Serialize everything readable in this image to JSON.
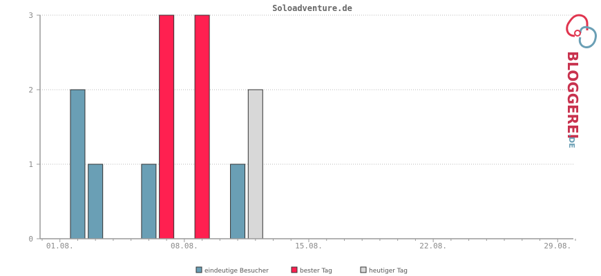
{
  "chart_data": {
    "type": "bar",
    "title": "Soloadventure.de",
    "xlabel": "",
    "ylabel": "",
    "ylim": [
      0,
      3
    ],
    "yticks": [
      0,
      1,
      2,
      3
    ],
    "x_range_days": [
      0,
      30
    ],
    "x_tick_labels": [
      "01.08.",
      "08.08.",
      "15.08.",
      "22.08.",
      "29.08."
    ],
    "x_tick_days": [
      1,
      8,
      15,
      22,
      29
    ],
    "grid": true,
    "legend_position": "bottom-center",
    "series": [
      {
        "name": "eindeutige Besucher",
        "color": "#6a9fb5",
        "points": [
          {
            "day": 2,
            "value": 2
          },
          {
            "day": 3,
            "value": 1
          },
          {
            "day": 6,
            "value": 1
          },
          {
            "day": 11,
            "value": 1
          }
        ]
      },
      {
        "name": "bester Tag",
        "color": "#ff2050",
        "points": [
          {
            "day": 7,
            "value": 3
          },
          {
            "day": 9,
            "value": 3
          }
        ]
      },
      {
        "name": "heutiger Tag",
        "color": "#d8d8d8",
        "points": [
          {
            "day": 12,
            "value": 2
          }
        ]
      }
    ]
  },
  "logo": {
    "text": "BLOGGEREI",
    "suffix": ".DE"
  }
}
